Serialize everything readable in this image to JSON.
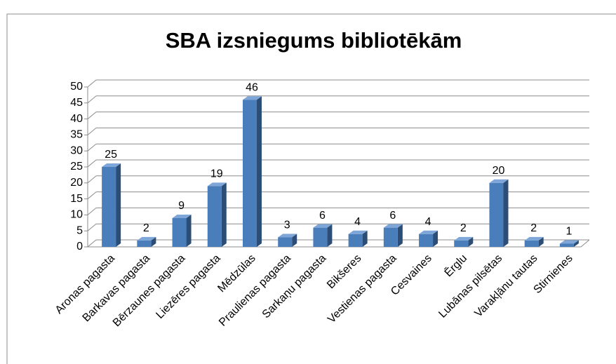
{
  "chart_data": {
    "type": "bar",
    "title": "SBA izsniegums bibliotēkām",
    "categories": [
      "Aronas pagasta",
      "Barkavas pagasta",
      "Bērzaunes pagasta",
      "Liezēres pagasta",
      "Mēdzūlas",
      "Praulienas pagasta",
      "Sarkaņu pagasta",
      "Bikšeres",
      "Vestienas pagasta",
      "Cesvaines",
      "Ērglu",
      "Lubānas pilsētas",
      "Varakļānu tautas",
      "Stirnienes"
    ],
    "values": [
      25,
      2,
      9,
      19,
      46,
      3,
      6,
      4,
      6,
      4,
      2,
      20,
      2,
      1
    ],
    "color": "#4a7ebb",
    "ylim": [
      0,
      50
    ],
    "yticks": [
      0,
      5,
      10,
      15,
      20,
      25,
      30,
      35,
      40,
      45,
      50
    ],
    "grid": true
  }
}
